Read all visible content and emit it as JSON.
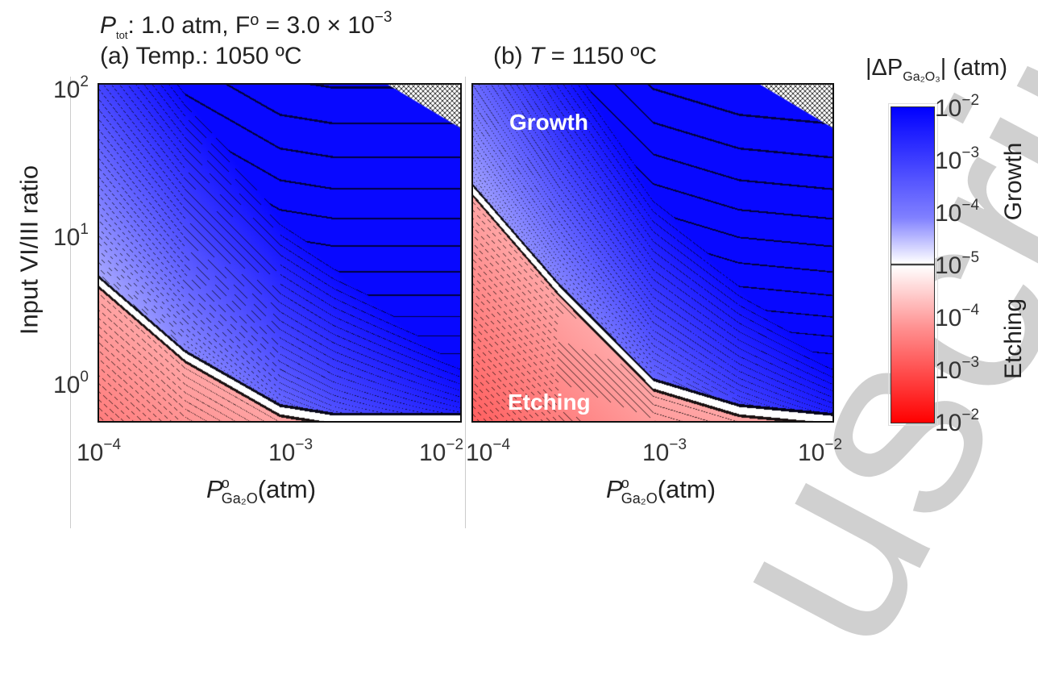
{
  "figure": {
    "header_prefix": "P",
    "header_sub": "tot",
    "header_mid": ": 1.0 atm, F",
    "header_sup_o": "o",
    "header_eq": " = 3.0 × 10",
    "header_exp": "−3",
    "watermark": "uscript"
  },
  "chart_data": [
    {
      "type": "heatmap",
      "title": "(a) Temp.: 1050 ºC",
      "xlabel": "P°Ga2O(atm)",
      "ylabel": "Input VI/III ratio",
      "xscale": "log",
      "yscale": "log",
      "xlim": [
        0.0001,
        0.01
      ],
      "ylim": [
        0.5,
        100
      ],
      "xticks": [
        "10^-4",
        "10^-3",
        "10^-2"
      ],
      "yticks": [
        "10^0",
        "10^1",
        "10^2"
      ],
      "growth_etching_boundary": {
        "x": [
          0.0001,
          0.0003,
          0.001
        ],
        "y": [
          4.5,
          1.4,
          0.6
        ]
      },
      "hatched_region": "top-right"
    },
    {
      "type": "heatmap",
      "title": "(b) T = 1150 ºC",
      "xlabel": "P°Ga2O(atm)",
      "xscale": "log",
      "yscale": "log",
      "xlim": [
        0.0001,
        0.01
      ],
      "ylim": [
        0.5,
        100
      ],
      "xticks": [
        "10^-4",
        "10^-3",
        "10^-2"
      ],
      "region_labels": [
        "Growth",
        "Etching"
      ],
      "growth_etching_boundary": {
        "x": [
          0.0001,
          0.0003,
          0.001,
          0.003,
          0.01
        ],
        "y": [
          19,
          4,
          0.9,
          0.6,
          0.52
        ]
      },
      "hatched_region": "top-right"
    }
  ],
  "colorbar": {
    "title_pre": "|ΔP",
    "title_sub": "Ga₂O₃",
    "title_post": "| (atm)",
    "ticks": [
      "10^-2",
      "10^-3",
      "10^-4",
      "10^-5",
      "10^-4",
      "10^-3",
      "10^-2"
    ],
    "growth_label": "Growth",
    "etching_label": "Etching",
    "colors": {
      "growth": "#0000ff",
      "neutral": "#ffffff",
      "etching": "#ff0000"
    }
  },
  "panels": {
    "a_title": "(a) Temp.: 1050 ºC",
    "b_title_pre": "(b) ",
    "b_title_T": "T",
    "b_title_post": " = 1150 ºC",
    "growth": "Growth",
    "etching": "Etching",
    "ylabel": "Input VI/III ratio",
    "xlabel_P": "P",
    "xlabel_sup": "o",
    "xlabel_sub": "Ga₂O",
    "xlabel_unit": "(atm)",
    "tick_base": "10",
    "xexp": [
      "−4",
      "−3",
      "−2"
    ],
    "yexp": [
      "0",
      "1",
      "2"
    ],
    "cbexp": [
      "−2",
      "−3",
      "−4",
      "−5",
      "−4",
      "−3",
      "−2"
    ]
  }
}
